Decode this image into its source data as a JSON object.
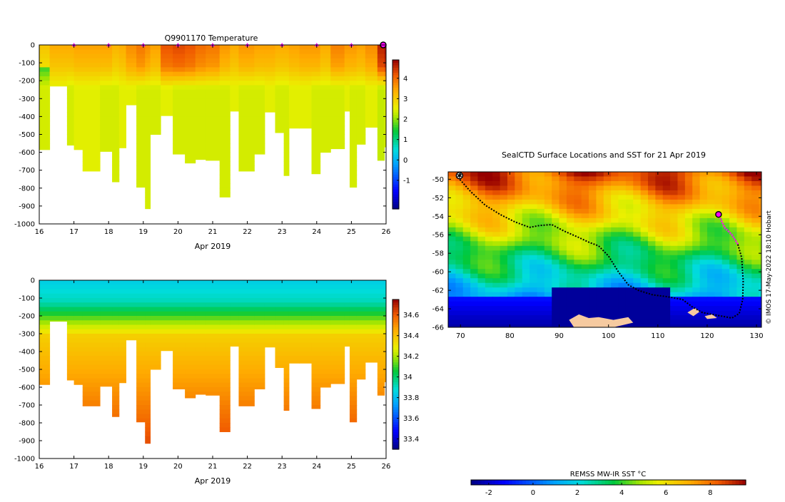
{
  "chart_data": [
    {
      "id": "temperature",
      "type": "heatmap",
      "title": "Q9901170  Temperature",
      "xlabel": "Apr 2019",
      "ylabel": "",
      "x_range": [
        16,
        26
      ],
      "y_range": [
        -1000,
        0
      ],
      "x_ticks": [
        16,
        17,
        18,
        19,
        20,
        21,
        22,
        23,
        24,
        25,
        26
      ],
      "y_ticks": [
        0,
        -100,
        -200,
        -300,
        -400,
        -500,
        -600,
        -700,
        -800,
        -900,
        -1000
      ],
      "colorbar": {
        "min": -2.4,
        "max": 4.9,
        "ticks": [
          -1,
          0,
          1,
          2,
          3,
          4
        ],
        "palette": "jet"
      },
      "markers": {
        "days": [
          17,
          18,
          19,
          20,
          21,
          22,
          23,
          24,
          25
        ],
        "color": "#ff00ff",
        "end_marker_day": 26
      },
      "profiles": [
        {
          "t": 16.0,
          "depth": 585,
          "surface": 3.1,
          "deep": 2.4,
          "mid": 1.6
        },
        {
          "t": 16.3,
          "depth": 230,
          "surface": 3.4,
          "deep": 2.5
        },
        {
          "t": 16.8,
          "depth": 560,
          "surface": 3.4,
          "deep": 2.4
        },
        {
          "t": 17.0,
          "depth": 585,
          "surface": 3.5,
          "deep": 2.5
        },
        {
          "t": 17.25,
          "depth": 705,
          "surface": 3.5,
          "deep": 2.5
        },
        {
          "t": 17.75,
          "depth": 595,
          "surface": 3.5,
          "deep": 2.4
        },
        {
          "t": 18.1,
          "depth": 765,
          "surface": 3.3,
          "deep": 2.4
        },
        {
          "t": 18.3,
          "depth": 575,
          "surface": 3.4,
          "deep": 2.5
        },
        {
          "t": 18.5,
          "depth": 335,
          "surface": 3.7,
          "deep": 2.5
        },
        {
          "t": 18.8,
          "depth": 795,
          "surface": 3.9,
          "deep": 2.4
        },
        {
          "t": 19.05,
          "depth": 915,
          "surface": 3.7,
          "deep": 2.4
        },
        {
          "t": 19.2,
          "depth": 500,
          "surface": 3.5,
          "deep": 2.4
        },
        {
          "t": 19.5,
          "depth": 395,
          "surface": 4.2,
          "deep": 2.5
        },
        {
          "t": 19.85,
          "depth": 610,
          "surface": 4.3,
          "deep": 2.4
        },
        {
          "t": 20.2,
          "depth": 660,
          "surface": 4.2,
          "deep": 2.4
        },
        {
          "t": 20.5,
          "depth": 640,
          "surface": 4.0,
          "deep": 2.4
        },
        {
          "t": 20.8,
          "depth": 645,
          "surface": 3.9,
          "deep": 2.4
        },
        {
          "t": 21.2,
          "depth": 850,
          "surface": 3.6,
          "deep": 2.4
        },
        {
          "t": 21.5,
          "depth": 370,
          "surface": 3.4,
          "deep": 2.5
        },
        {
          "t": 21.75,
          "depth": 705,
          "surface": 3.6,
          "deep": 2.4
        },
        {
          "t": 22.2,
          "depth": 610,
          "surface": 3.5,
          "deep": 2.4
        },
        {
          "t": 22.5,
          "depth": 375,
          "surface": 3.5,
          "deep": 2.5
        },
        {
          "t": 22.8,
          "depth": 490,
          "surface": 3.4,
          "deep": 2.4
        },
        {
          "t": 23.05,
          "depth": 730,
          "surface": 3.4,
          "deep": 2.4
        },
        {
          "t": 23.2,
          "depth": 465,
          "surface": 3.5,
          "deep": 2.5
        },
        {
          "t": 23.5,
          "depth": 465,
          "surface": 3.6,
          "deep": 2.5
        },
        {
          "t": 23.85,
          "depth": 720,
          "surface": 3.6,
          "deep": 2.4
        },
        {
          "t": 24.1,
          "depth": 600,
          "surface": 3.4,
          "deep": 2.4
        },
        {
          "t": 24.4,
          "depth": 580,
          "surface": 3.8,
          "deep": 2.4
        },
        {
          "t": 24.8,
          "depth": 370,
          "surface": 3.6,
          "deep": 2.5
        },
        {
          "t": 24.95,
          "depth": 795,
          "surface": 3.6,
          "deep": 2.4
        },
        {
          "t": 25.15,
          "depth": 555,
          "surface": 3.5,
          "deep": 2.4
        },
        {
          "t": 25.4,
          "depth": 460,
          "surface": 3.7,
          "deep": 2.5
        },
        {
          "t": 25.75,
          "depth": 645,
          "surface": 4.6,
          "deep": 2.3
        },
        {
          "t": 25.95,
          "depth": 570,
          "surface": 4.8,
          "deep": 2.4
        }
      ]
    },
    {
      "id": "salinity",
      "type": "heatmap",
      "title": "",
      "xlabel": "Apr 2019",
      "ylabel": "",
      "x_range": [
        16,
        26
      ],
      "y_range": [
        -1000,
        0
      ],
      "x_ticks": [
        16,
        17,
        18,
        19,
        20,
        21,
        22,
        23,
        24,
        25,
        26
      ],
      "y_ticks": [
        0,
        -100,
        -200,
        -300,
        -400,
        -500,
        -600,
        -700,
        -800,
        -900,
        -1000
      ],
      "colorbar": {
        "min": 33.3,
        "max": 34.75,
        "ticks": [
          33.4,
          33.6,
          33.8,
          34,
          34.2,
          34.4,
          34.6
        ],
        "palette": "jet"
      },
      "surface_value": 33.85,
      "deep_value": 34.62
    },
    {
      "id": "sst_map",
      "type": "heatmap",
      "title": "SealCTD Surface Locations and SST for 21 Apr 2019",
      "xlabel": "",
      "ylabel": "",
      "x_range": [
        67.5,
        131
      ],
      "y_range": [
        -66,
        -49.2
      ],
      "x_ticks": [
        70,
        80,
        90,
        100,
        110,
        120,
        130
      ],
      "y_ticks": [
        -50,
        -52,
        -54,
        -56,
        -58,
        -60,
        -62,
        -64,
        -66
      ],
      "colorbar": {
        "label": "REMSS MW-IR SST °C",
        "min": -2.8,
        "max": 9.6,
        "ticks": [
          -2,
          0,
          2,
          4,
          6,
          8
        ],
        "palette": "jet",
        "orientation": "horizontal"
      },
      "track": {
        "points": [
          [
            69.5,
            -49.8
          ],
          [
            72,
            -51.3
          ],
          [
            75,
            -52.8
          ],
          [
            78,
            -53.8
          ],
          [
            81,
            -54.6
          ],
          [
            84,
            -55.2
          ],
          [
            86,
            -55.0
          ],
          [
            88.5,
            -54.9
          ],
          [
            91,
            -55.6
          ],
          [
            94,
            -56.3
          ],
          [
            96,
            -56.8
          ],
          [
            98,
            -57.2
          ],
          [
            100,
            -58.3
          ],
          [
            102,
            -60.0
          ],
          [
            104,
            -61.4
          ],
          [
            106,
            -62.0
          ],
          [
            109,
            -62.5
          ],
          [
            112,
            -62.7
          ],
          [
            115,
            -63.0
          ],
          [
            117,
            -63.8
          ],
          [
            119,
            -64.4
          ],
          [
            121,
            -64.6
          ],
          [
            123,
            -64.8
          ],
          [
            125,
            -65.0
          ],
          [
            126.5,
            -64.5
          ],
          [
            127.2,
            -63.0
          ],
          [
            127.3,
            -61.0
          ],
          [
            127.0,
            -58.5
          ],
          [
            126.2,
            -57.0
          ],
          [
            125,
            -56.0
          ],
          [
            123.5,
            -55.2
          ],
          [
            122.3,
            -53.8
          ]
        ],
        "highlight_from_index": 28,
        "start_marker": [
          69.8,
          -49.6
        ],
        "end_marker": [
          122.3,
          -53.8
        ]
      },
      "land": [
        [
          [
            92,
            -65.2
          ],
          [
            94,
            -64.6
          ],
          [
            96,
            -65.0
          ],
          [
            98,
            -64.9
          ],
          [
            101,
            -65.2
          ],
          [
            104,
            -64.9
          ],
          [
            105,
            -65.5
          ],
          [
            101,
            -66
          ],
          [
            93,
            -66
          ]
        ],
        [
          [
            116,
            -64.4
          ],
          [
            117.5,
            -63.9
          ],
          [
            118.5,
            -64.3
          ],
          [
            117.2,
            -64.8
          ]
        ],
        [
          [
            119.5,
            -64.8
          ],
          [
            121,
            -64.6
          ],
          [
            122,
            -65.0
          ],
          [
            120,
            -65.1
          ]
        ]
      ]
    }
  ],
  "credit": "© IMOS 17-May-2022 18:10 Hobart"
}
